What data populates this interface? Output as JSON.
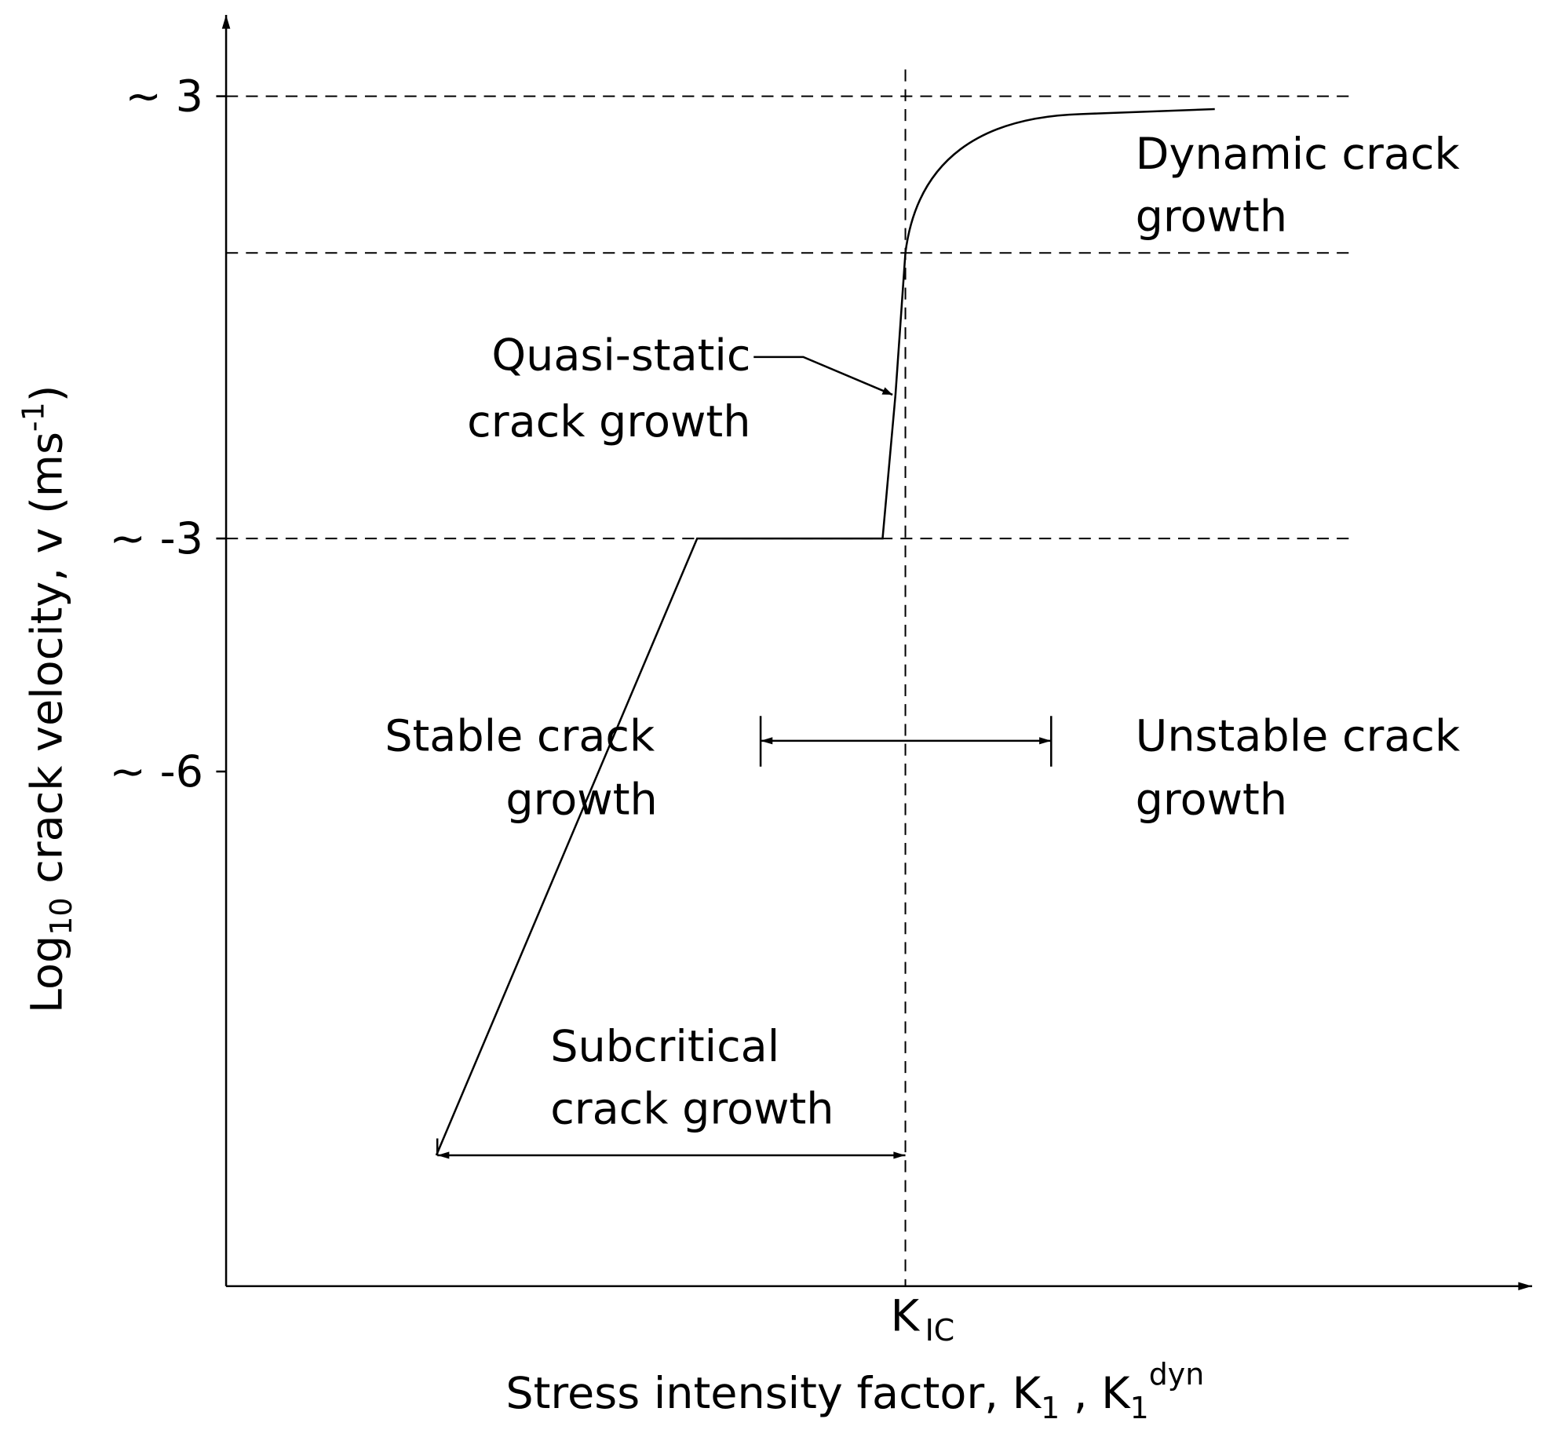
{
  "y_axis": {
    "label": {
      "main": "Log",
      "sub": "10",
      "rest": " crack velocity, v (ms",
      "sup": "-1",
      "end": ")"
    },
    "ticks": [
      "~ 3",
      "~ -3",
      "~ -6"
    ]
  },
  "x_axis": {
    "label": {
      "main": "Stress intensity factor, K",
      "sub1": "1",
      "mid": " , K",
      "sub2": "1",
      "sup": "dyn"
    },
    "kic": {
      "main": "K",
      "sub": "IC"
    }
  },
  "regions": {
    "dynamic": [
      "Dynamic crack",
      "growth"
    ],
    "quasi_static": [
      "Quasi-static",
      "crack growth"
    ],
    "stable": [
      "Stable crack",
      "growth"
    ],
    "unstable": [
      "Unstable crack",
      "growth"
    ],
    "subcritical": [
      "Subcritical",
      "crack growth"
    ]
  }
}
